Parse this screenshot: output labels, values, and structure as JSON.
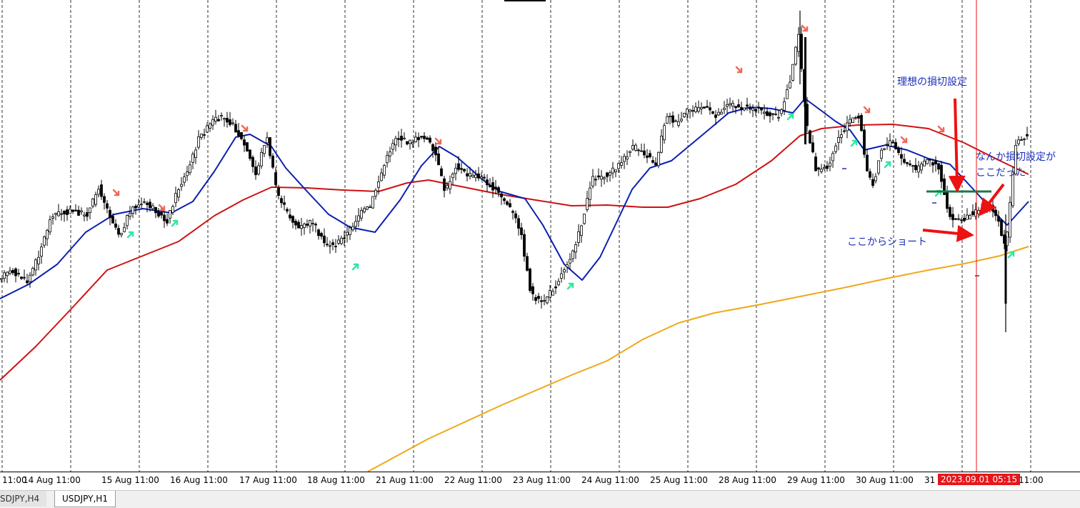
{
  "colors": {
    "candle": "#000000",
    "ma_fast": "#0a1fb0",
    "ma_mid": "#d01010",
    "ma_slow": "#f0a818",
    "buy_arrow": "#2ee8a0",
    "sell_arrow": "#ee6a5a",
    "stop_line": "#1a7a4a",
    "annotation_arrow": "#ee1111",
    "annotation_text": "#1b2fb8",
    "current_time_bg": "#e8161b"
  },
  "tabs": [
    {
      "label": "SDJPY,H4",
      "active": false
    },
    {
      "label": "USDJPY,H1",
      "active": true
    }
  ],
  "annotations": {
    "ideal_stop": "理想の損切設定",
    "actual_stop_1": "なんか損切設定が",
    "actual_stop_2": "ここだった",
    "short_entry": "ここからショート"
  },
  "current_time_label": "2023.09.01 05:15",
  "chart_data": {
    "type": "candlestick",
    "symbol": "USDJPY",
    "timeframe": "H1",
    "x_ticks": [
      "11:00",
      "14 Aug 11:00",
      "15 Aug 11:00",
      "16 Aug 11:00",
      "17 Aug 11:00",
      "18 Aug 11:00",
      "21 Aug 11:00",
      "22 Aug 11:00",
      "23 Aug 11:00",
      "24 Aug 11:00",
      "25 Aug 11:00",
      "28 Aug 11:00",
      "29 Aug 11:00",
      "30 Aug 11:00",
      "31",
      "11:00"
    ],
    "price_path": [
      [
        0,
        388
      ],
      [
        20,
        380
      ],
      [
        40,
        395
      ],
      [
        55,
        360
      ],
      [
        75,
        300
      ],
      [
        100,
        296
      ],
      [
        125,
        300
      ],
      [
        140,
        262
      ],
      [
        155,
        300
      ],
      [
        170,
        330
      ],
      [
        185,
        292
      ],
      [
        205,
        285
      ],
      [
        220,
        294
      ],
      [
        235,
        312
      ],
      [
        250,
        268
      ],
      [
        265,
        240
      ],
      [
        280,
        195
      ],
      [
        300,
        170
      ],
      [
        315,
        162
      ],
      [
        330,
        178
      ],
      [
        345,
        205
      ],
      [
        360,
        245
      ],
      [
        375,
        190
      ],
      [
        390,
        270
      ],
      [
        405,
        300
      ],
      [
        420,
        320
      ],
      [
        440,
        310
      ],
      [
        455,
        340
      ],
      [
        470,
        345
      ],
      [
        490,
        325
      ],
      [
        505,
        300
      ],
      [
        520,
        290
      ],
      [
        535,
        245
      ],
      [
        555,
        192
      ],
      [
        575,
        200
      ],
      [
        595,
        190
      ],
      [
        610,
        210
      ],
      [
        625,
        270
      ],
      [
        640,
        232
      ],
      [
        655,
        245
      ],
      [
        675,
        248
      ],
      [
        695,
        265
      ],
      [
        715,
        290
      ],
      [
        730,
        320
      ],
      [
        745,
        410
      ],
      [
        760,
        425
      ],
      [
        780,
        400
      ],
      [
        800,
        360
      ],
      [
        815,
        320
      ],
      [
        830,
        250
      ],
      [
        850,
        245
      ],
      [
        870,
        230
      ],
      [
        890,
        205
      ],
      [
        905,
        215
      ],
      [
        920,
        230
      ],
      [
        935,
        160
      ],
      [
        950,
        175
      ],
      [
        965,
        155
      ],
      [
        985,
        150
      ],
      [
        1005,
        162
      ],
      [
        1020,
        145
      ],
      [
        1040,
        150
      ],
      [
        1060,
        152
      ],
      [
        1080,
        162
      ],
      [
        1095,
        160
      ],
      [
        1110,
        105
      ],
      [
        1120,
        45
      ],
      [
        1130,
        170
      ],
      [
        1145,
        240
      ],
      [
        1160,
        235
      ],
      [
        1175,
        195
      ],
      [
        1190,
        170
      ],
      [
        1205,
        162
      ],
      [
        1215,
        240
      ],
      [
        1225,
        258
      ],
      [
        1235,
        210
      ],
      [
        1250,
        198
      ],
      [
        1265,
        225
      ],
      [
        1285,
        238
      ],
      [
        1300,
        225
      ],
      [
        1315,
        230
      ],
      [
        1330,
        300
      ],
      [
        1345,
        310
      ],
      [
        1360,
        300
      ],
      [
        1375,
        295
      ],
      [
        1390,
        290
      ],
      [
        1400,
        310
      ],
      [
        1410,
        350
      ],
      [
        1418,
        262
      ],
      [
        1425,
        195
      ],
      [
        1440,
        190
      ]
    ],
    "ma_fast": [
      [
        0,
        418
      ],
      [
        40,
        398
      ],
      [
        80,
        370
      ],
      [
        120,
        325
      ],
      [
        160,
        300
      ],
      [
        200,
        292
      ],
      [
        240,
        298
      ],
      [
        270,
        282
      ],
      [
        300,
        240
      ],
      [
        330,
        192
      ],
      [
        350,
        188
      ],
      [
        380,
        205
      ],
      [
        400,
        235
      ],
      [
        430,
        268
      ],
      [
        460,
        300
      ],
      [
        490,
        318
      ],
      [
        525,
        325
      ],
      [
        560,
        280
      ],
      [
        590,
        232
      ],
      [
        615,
        205
      ],
      [
        640,
        220
      ],
      [
        680,
        255
      ],
      [
        700,
        268
      ],
      [
        735,
        278
      ],
      [
        760,
        315
      ],
      [
        790,
        370
      ],
      [
        815,
        392
      ],
      [
        840,
        360
      ],
      [
        860,
        318
      ],
      [
        885,
        265
      ],
      [
        910,
        235
      ],
      [
        940,
        225
      ],
      [
        970,
        200
      ],
      [
        1000,
        175
      ],
      [
        1020,
        158
      ],
      [
        1050,
        150
      ],
      [
        1080,
        152
      ],
      [
        1110,
        158
      ],
      [
        1127,
        138
      ],
      [
        1150,
        155
      ],
      [
        1170,
        170
      ],
      [
        1190,
        182
      ],
      [
        1210,
        210
      ],
      [
        1240,
        203
      ],
      [
        1270,
        210
      ],
      [
        1300,
        222
      ],
      [
        1330,
        230
      ],
      [
        1360,
        262
      ],
      [
        1390,
        295
      ],
      [
        1410,
        315
      ],
      [
        1440,
        282
      ]
    ],
    "ma_mid": [
      [
        0,
        532
      ],
      [
        50,
        485
      ],
      [
        100,
        432
      ],
      [
        150,
        378
      ],
      [
        200,
        358
      ],
      [
        250,
        338
      ],
      [
        300,
        302
      ],
      [
        340,
        280
      ],
      [
        380,
        262
      ],
      [
        430,
        263
      ],
      [
        480,
        266
      ],
      [
        530,
        268
      ],
      [
        570,
        256
      ],
      [
        600,
        252
      ],
      [
        650,
        262
      ],
      [
        700,
        272
      ],
      [
        750,
        280
      ],
      [
        800,
        288
      ],
      [
        850,
        287
      ],
      [
        900,
        290
      ],
      [
        935,
        290
      ],
      [
        980,
        278
      ],
      [
        1030,
        258
      ],
      [
        1080,
        225
      ],
      [
        1120,
        190
      ],
      [
        1150,
        180
      ],
      [
        1200,
        175
      ],
      [
        1250,
        174
      ],
      [
        1300,
        180
      ],
      [
        1350,
        200
      ],
      [
        1400,
        225
      ],
      [
        1440,
        244
      ]
    ],
    "ma_slow": [
      [
        515,
        660
      ],
      [
        600,
        614
      ],
      [
        700,
        568
      ],
      [
        800,
        525
      ],
      [
        850,
        505
      ],
      [
        900,
        475
      ],
      [
        950,
        452
      ],
      [
        1000,
        438
      ],
      [
        1060,
        427
      ],
      [
        1120,
        415
      ],
      [
        1180,
        403
      ],
      [
        1250,
        388
      ],
      [
        1300,
        378
      ],
      [
        1350,
        369
      ],
      [
        1400,
        358
      ],
      [
        1440,
        345
      ]
    ],
    "buy_arrows": [
      [
        183,
        328
      ],
      [
        245,
        312
      ],
      [
        498,
        373
      ],
      [
        799,
        400
      ],
      [
        1107,
        163
      ],
      [
        1196,
        200
      ],
      [
        1243,
        230
      ],
      [
        1314,
        270
      ],
      [
        1416,
        356
      ]
    ],
    "sell_arrows": [
      [
        163,
        270
      ],
      [
        227,
        291
      ],
      [
        343,
        180
      ],
      [
        614,
        198
      ],
      [
        1035,
        98
      ],
      [
        1127,
        40
      ],
      [
        1214,
        154
      ],
      [
        1266,
        196
      ],
      [
        1318,
        181
      ]
    ],
    "dashes": [
      [
        1182,
        236
      ],
      [
        1308,
        284
      ],
      [
        1368,
        386
      ]
    ],
    "stop_line": [
      [
        1297,
        268
      ],
      [
        1388,
        268
      ]
    ]
  }
}
